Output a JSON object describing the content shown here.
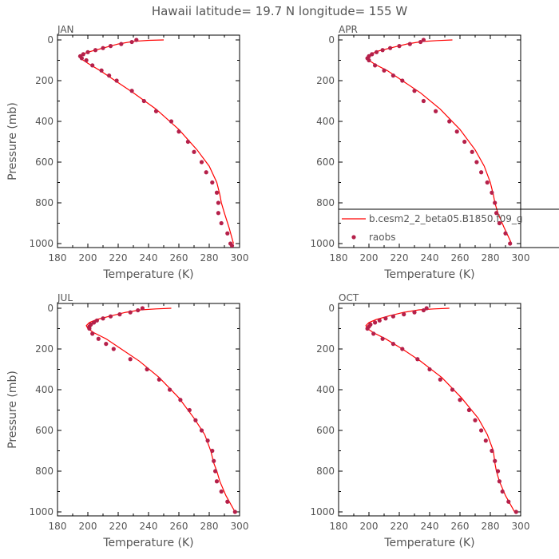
{
  "page_title": "Hawaii  latitude= 19.7 N longitude= 155 W",
  "colors": {
    "model": "#ff0000",
    "obs": "#b5204a",
    "axis": "#000000",
    "text": "#555555",
    "tick_text": "#555555"
  },
  "legend": {
    "panel": 1,
    "model_label": "b.cesm2_2_beta05.B1850.f09_g",
    "obs_label": "raobs"
  },
  "chart_data": [
    {
      "type": "line",
      "title": "JAN",
      "xlabel": "Temperature (K)",
      "ylabel": "Pressure (mb)",
      "xlim": [
        180,
        300
      ],
      "ylim": [
        0,
        1000
      ],
      "y_inverted": true,
      "xticks": [
        "180",
        "200",
        "220",
        "240",
        "260",
        "280",
        "300"
      ],
      "yticks": [
        "0",
        "200",
        "400",
        "600",
        "800",
        "1000"
      ],
      "series": [
        {
          "kind": "line",
          "x": [
            250,
            240,
            230,
            220,
            210,
            200,
            196,
            194,
            196,
            200,
            208,
            218,
            230,
            245,
            260,
            272,
            280,
            285,
            287,
            288,
            290,
            293,
            296
          ],
          "y": [
            0,
            2,
            7,
            20,
            40,
            60,
            72,
            80,
            95,
            115,
            150,
            200,
            260,
            340,
            440,
            540,
            620,
            700,
            760,
            800,
            850,
            920,
            1000
          ]
        },
        {
          "kind": "scatter",
          "x": [
            232,
            229,
            222,
            215,
            210,
            205,
            200,
            197,
            195,
            196,
            199,
            203,
            209,
            214,
            219,
            229,
            237,
            245,
            255,
            260,
            266,
            270,
            275,
            278,
            282,
            285,
            286,
            286,
            288,
            292,
            294,
            295
          ],
          "y": [
            0,
            10,
            20,
            30,
            40,
            50,
            60,
            70,
            80,
            90,
            100,
            125,
            150,
            175,
            200,
            250,
            300,
            350,
            400,
            450,
            500,
            550,
            600,
            650,
            700,
            750,
            800,
            850,
            900,
            950,
            1000,
            1010
          ]
        }
      ]
    },
    {
      "type": "line",
      "title": "APR",
      "xlabel": "Temperature (K)",
      "ylabel": "",
      "xlim": [
        180,
        300
      ],
      "ylim": [
        0,
        1000
      ],
      "y_inverted": true,
      "xticks": [
        "180",
        "200",
        "220",
        "240",
        "260",
        "280",
        "300"
      ],
      "yticks": [
        "0",
        "200",
        "400",
        "600",
        "800",
        "1000"
      ],
      "series": [
        {
          "kind": "line",
          "x": [
            255,
            245,
            235,
            225,
            215,
            206,
            201,
            199,
            200,
            204,
            212,
            222,
            234,
            247,
            260,
            270,
            276,
            280,
            282,
            283,
            285,
            289,
            294
          ],
          "y": [
            0,
            3,
            8,
            20,
            38,
            55,
            70,
            85,
            100,
            120,
            150,
            200,
            260,
            340,
            440,
            540,
            620,
            700,
            760,
            800,
            850,
            920,
            1000
          ]
        },
        {
          "kind": "scatter",
          "x": [
            236,
            234,
            227,
            220,
            214,
            209,
            205,
            202,
            200,
            199,
            200,
            204,
            210,
            216,
            222,
            230,
            236,
            244,
            253,
            258,
            263,
            268,
            271,
            274,
            278,
            281,
            283,
            284,
            286,
            290,
            293
          ],
          "y": [
            0,
            10,
            20,
            30,
            40,
            50,
            60,
            70,
            80,
            90,
            100,
            125,
            150,
            175,
            200,
            250,
            300,
            350,
            400,
            450,
            500,
            550,
            600,
            650,
            700,
            750,
            800,
            850,
            900,
            950,
            1000
          ]
        }
      ]
    },
    {
      "type": "line",
      "title": "JUL",
      "xlabel": "Temperature (K)",
      "ylabel": "Pressure (mb)",
      "xlim": [
        180,
        300
      ],
      "ylim": [
        0,
        1000
      ],
      "y_inverted": true,
      "xticks": [
        "180",
        "200",
        "220",
        "240",
        "260",
        "280",
        "300"
      ],
      "yticks": [
        "0",
        "200",
        "400",
        "600",
        "800",
        "1000"
      ],
      "series": [
        {
          "kind": "line",
          "x": [
            255,
            245,
            235,
            225,
            215,
            206,
            201,
            199,
            200,
            204,
            212,
            222,
            234,
            247,
            260,
            270,
            277,
            281,
            283,
            285,
            287,
            291,
            297
          ],
          "y": [
            0,
            3,
            8,
            20,
            38,
            55,
            70,
            85,
            100,
            120,
            150,
            200,
            260,
            340,
            440,
            540,
            620,
            700,
            760,
            800,
            850,
            920,
            1000
          ]
        },
        {
          "kind": "scatter",
          "x": [
            236,
            233,
            228,
            221,
            215,
            210,
            206,
            204,
            202,
            201,
            201,
            203,
            207,
            212,
            217,
            228,
            239,
            247,
            254,
            261,
            267,
            271,
            275,
            279,
            282,
            283,
            284,
            285,
            288,
            292,
            297
          ],
          "y": [
            0,
            10,
            20,
            30,
            40,
            50,
            60,
            70,
            80,
            90,
            100,
            125,
            150,
            175,
            200,
            250,
            300,
            350,
            400,
            450,
            500,
            550,
            600,
            650,
            700,
            750,
            800,
            850,
            900,
            950,
            1000
          ]
        }
      ]
    },
    {
      "type": "line",
      "title": "OCT",
      "xlabel": "Temperature (K)",
      "ylabel": "",
      "xlim": [
        180,
        300
      ],
      "ylim": [
        0,
        1000
      ],
      "y_inverted": true,
      "xticks": [
        "180",
        "200",
        "220",
        "240",
        "260",
        "280",
        "300"
      ],
      "yticks": [
        "0",
        "200",
        "400",
        "600",
        "800",
        "1000"
      ],
      "series": [
        {
          "kind": "line",
          "x": [
            253,
            243,
            233,
            223,
            213,
            205,
            200,
            198,
            199,
            203,
            211,
            222,
            234,
            248,
            261,
            272,
            278,
            282,
            283,
            284,
            286,
            290,
            296
          ],
          "y": [
            0,
            3,
            8,
            20,
            38,
            55,
            70,
            85,
            100,
            120,
            150,
            200,
            260,
            340,
            440,
            540,
            620,
            700,
            760,
            800,
            850,
            920,
            1000
          ]
        },
        {
          "kind": "scatter",
          "x": [
            238,
            236,
            230,
            223,
            216,
            211,
            207,
            204,
            201,
            200,
            199,
            203,
            209,
            216,
            222,
            232,
            240,
            247,
            255,
            260,
            266,
            270,
            274,
            277,
            281,
            283,
            285,
            286,
            288,
            292,
            297
          ],
          "y": [
            0,
            10,
            20,
            30,
            40,
            50,
            60,
            70,
            80,
            90,
            100,
            125,
            150,
            175,
            200,
            250,
            300,
            350,
            400,
            450,
            500,
            550,
            600,
            650,
            700,
            750,
            800,
            850,
            900,
            950,
            1000
          ]
        }
      ]
    }
  ]
}
